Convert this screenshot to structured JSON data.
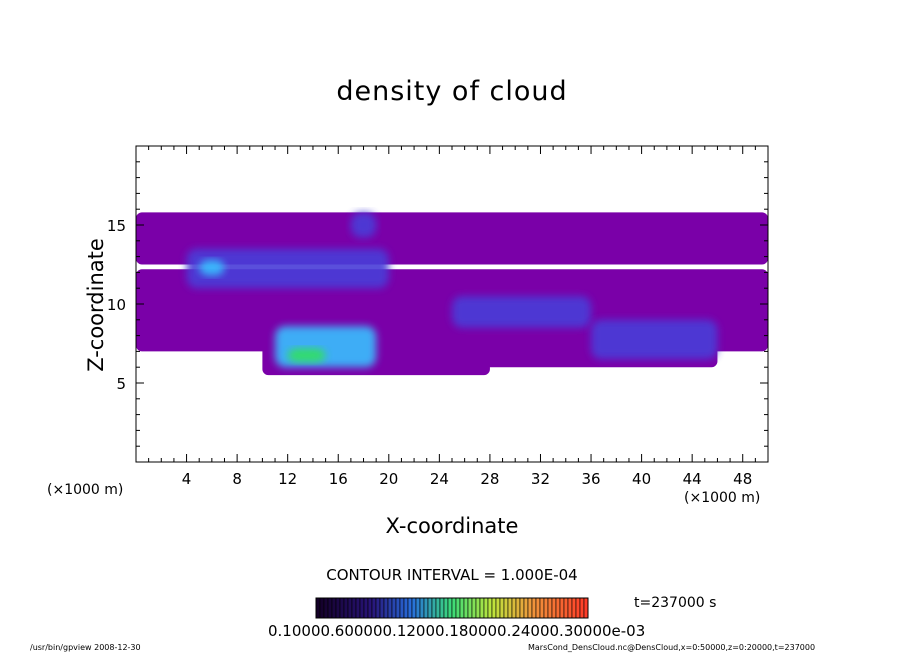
{
  "chart_data": {
    "type": "heatmap",
    "title": "density of cloud",
    "xlabel": "X-coordinate",
    "ylabel": "Z-coordinate",
    "x_unit_label": "(×1000 m)",
    "x_ticks": [
      "4",
      "8",
      "12",
      "16",
      "20",
      "24",
      "28",
      "32",
      "36",
      "40",
      "44",
      "48"
    ],
    "y_ticks": [
      "5",
      "10",
      "15"
    ],
    "xlim": [
      0,
      50
    ],
    "ylim": [
      0,
      20
    ],
    "contour_interval": "CONTOUR INTERVAL = 1.000E-04",
    "colorbar_labels": "0.10000.600000.12000.180000.24000.30000e-03",
    "time_label": "t=237000 s",
    "colors": {
      "background": "#7a00a8",
      "mid": "#4a3dd8",
      "high": "#38c0ff",
      "peak": "#30e060"
    },
    "layers": [
      {
        "x": [
          0.0,
          50.0
        ],
        "z": [
          12.5,
          15.8
        ],
        "level": "background"
      },
      {
        "x": [
          0.0,
          50.0
        ],
        "z": [
          7.0,
          12.2
        ],
        "level": "background"
      },
      {
        "x": [
          10.0,
          28.0
        ],
        "z": [
          5.5,
          8.5
        ],
        "level": "background"
      },
      {
        "x": [
          26.0,
          46.0
        ],
        "z": [
          6.0,
          8.0
        ],
        "level": "background"
      },
      {
        "x": [
          4.0,
          20.0
        ],
        "z": [
          11.0,
          13.5
        ],
        "level": "mid"
      },
      {
        "x": [
          17.0,
          19.0
        ],
        "z": [
          14.2,
          15.8
        ],
        "level": "mid"
      },
      {
        "x": [
          25.0,
          36.0
        ],
        "z": [
          8.5,
          10.5
        ],
        "level": "mid"
      },
      {
        "x": [
          36.0,
          46.0
        ],
        "z": [
          6.5,
          9.0
        ],
        "level": "mid"
      },
      {
        "x": [
          11.0,
          19.0
        ],
        "z": [
          6.0,
          8.6
        ],
        "level": "high"
      },
      {
        "x": [
          5.0,
          7.0
        ],
        "z": [
          11.8,
          12.8
        ],
        "level": "high"
      },
      {
        "x": [
          12.0,
          15.0
        ],
        "z": [
          6.3,
          7.2
        ],
        "level": "peak"
      }
    ]
  },
  "footer": {
    "left": "/usr/bin/gpview   2008-12-30",
    "right": "MarsCond_DensCloud.nc@DensCloud,x=0:50000,z=0:20000,t=237000"
  }
}
